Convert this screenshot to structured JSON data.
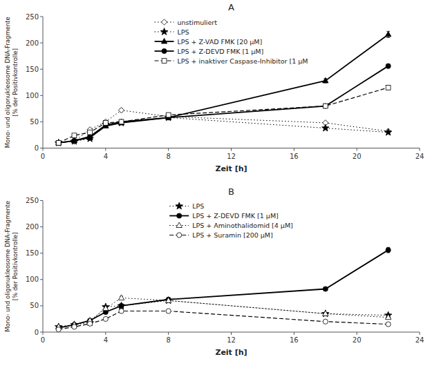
{
  "chart_data": [
    {
      "type": "line",
      "title": "A",
      "x_label": "Zeit [h]",
      "y_label": "Mono- und oligonukleosome DNA-Fragmente\n[% der Positivkontrolle]",
      "x": [
        1,
        2,
        3,
        4,
        5,
        8,
        18,
        22
      ],
      "series": [
        {
          "name": "unstimuliert",
          "color": "black",
          "marker": "open-diamond",
          "line_style": "dotted",
          "values": [
            10,
            13,
            35,
            50,
            72,
            60,
            48,
            32
          ],
          "errors": [
            1,
            1,
            2,
            2,
            3,
            2,
            2,
            2
          ]
        },
        {
          "name": "LPS",
          "color": "black",
          "marker": "star",
          "line_style": "dotted",
          "values": [
            10,
            13,
            18,
            45,
            48,
            58,
            38,
            30
          ],
          "errors": [
            1,
            1,
            1,
            2,
            2,
            2,
            2,
            2
          ]
        },
        {
          "name": "LPS + Z-VAD FMK [20 μM]",
          "color": "black",
          "marker": "triangle",
          "line_style": "solid",
          "values": [
            10,
            14,
            20,
            42,
            48,
            58,
            128,
            216
          ],
          "errors": [
            1,
            1,
            2,
            2,
            3,
            2,
            4,
            6
          ]
        },
        {
          "name": "LPS + Z-DEVD FMK [1 μM]",
          "color": "black",
          "marker": "circle",
          "line_style": "solid",
          "values": [
            10,
            14,
            22,
            44,
            50,
            58,
            80,
            156
          ],
          "errors": [
            1,
            1,
            2,
            2,
            3,
            2,
            3,
            4
          ]
        },
        {
          "name": "LPS + inaktiver Caspase-Inhibitor [1 μM",
          "color": "black",
          "marker": "open-square",
          "line_style": "dashed",
          "values": [
            10,
            24,
            30,
            48,
            50,
            63,
            80,
            115
          ],
          "errors": [
            1,
            2,
            2,
            2,
            3,
            3,
            3,
            4
          ]
        }
      ],
      "xlim": [
        0,
        24
      ],
      "xticks": [
        0,
        4,
        8,
        12,
        16,
        20,
        24
      ],
      "ylim": [
        0,
        250
      ],
      "yticks": [
        0,
        50,
        100,
        150,
        200,
        250
      ],
      "grid": false,
      "legend": "upper center"
    },
    {
      "type": "line",
      "title": "B",
      "x_label": "Zeit [h]",
      "y_label": "Mono- und oligonukleosome DNA-Fragmente\n[% der Positivkontrolle]",
      "x": [
        1,
        2,
        3,
        4,
        5,
        8,
        18,
        22
      ],
      "series": [
        {
          "name": "LPS",
          "color": "black",
          "marker": "star",
          "line_style": "dotted",
          "values": [
            10,
            14,
            18,
            48,
            50,
            60,
            35,
            32
          ],
          "errors": [
            1,
            1,
            2,
            2,
            3,
            2,
            2,
            2
          ]
        },
        {
          "name": "LPS + Z-DEVD FMK [1 μM]",
          "color": "black",
          "marker": "circle",
          "line_style": "solid",
          "values": [
            8,
            14,
            22,
            38,
            50,
            62,
            82,
            156
          ],
          "errors": [
            1,
            1,
            2,
            2,
            3,
            2,
            3,
            5
          ]
        },
        {
          "name": "LPS + Aminothalidomid [4 μM]",
          "color": "black",
          "marker": "open-triangle",
          "line_style": "dotted",
          "values": [
            10,
            14,
            22,
            45,
            65,
            60,
            35,
            28
          ],
          "errors": [
            1,
            1,
            2,
            2,
            3,
            3,
            2,
            2
          ]
        },
        {
          "name": "LPS + Suramin [200 μM]",
          "color": "black",
          "marker": "open-circle",
          "line_style": "dashed",
          "values": [
            5,
            10,
            16,
            25,
            40,
            40,
            20,
            15
          ],
          "errors": [
            1,
            1,
            1,
            2,
            2,
            2,
            2,
            2
          ]
        }
      ],
      "xlim": [
        0,
        24
      ],
      "xticks": [
        0,
        4,
        8,
        12,
        16,
        20,
        24
      ],
      "ylim": [
        0,
        250
      ],
      "yticks": [
        0,
        50,
        100,
        150,
        200,
        250
      ],
      "grid": false,
      "legend": "upper center"
    }
  ]
}
